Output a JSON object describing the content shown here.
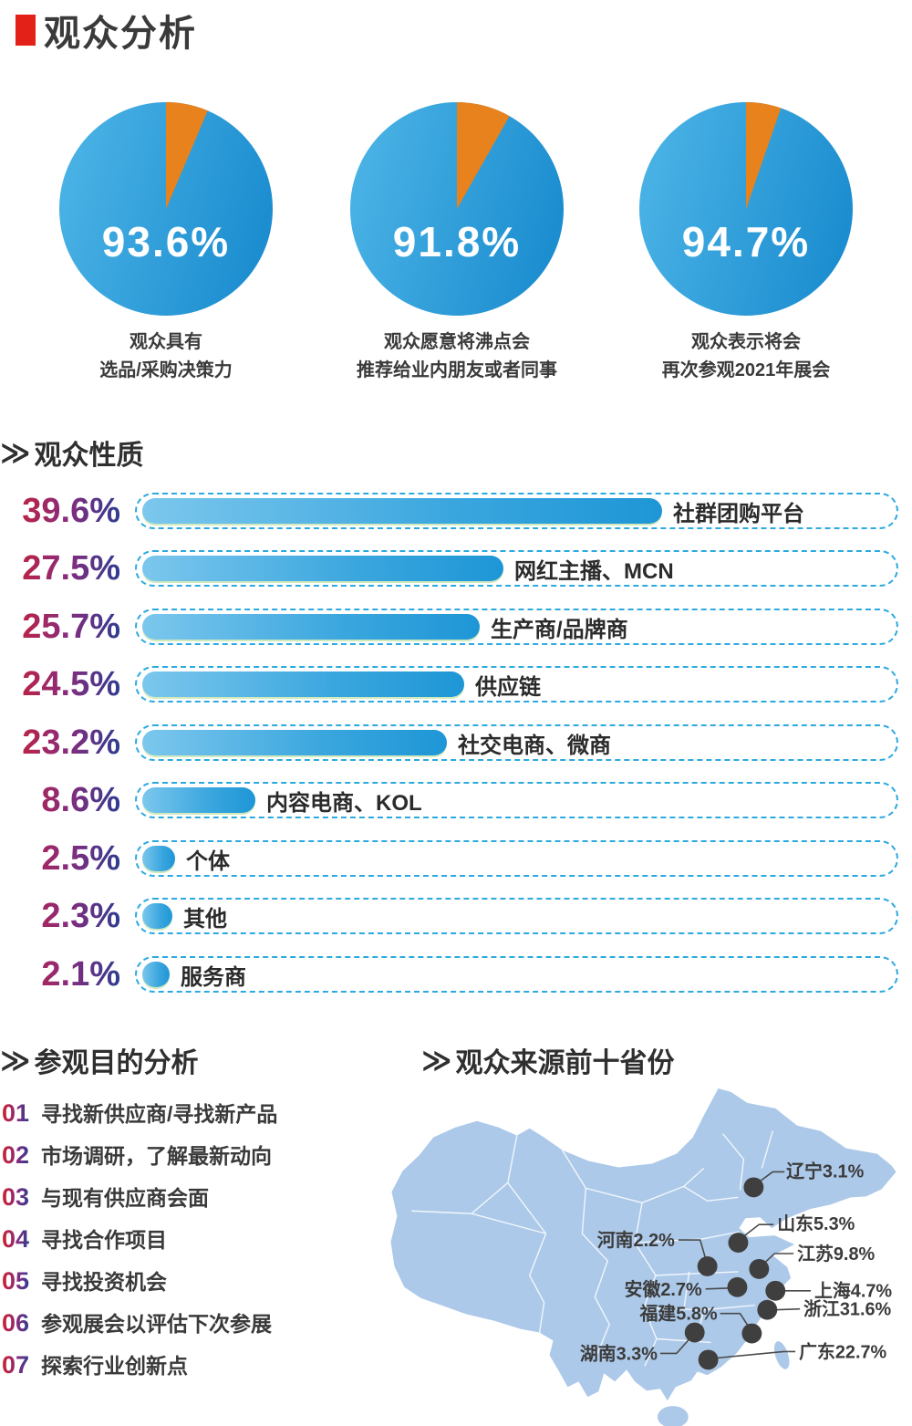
{
  "title": {
    "text": "观众分析"
  },
  "colors": {
    "accent_red": "#e32119",
    "pie_blue": "#2b9fdc",
    "pie_orange": "#e8821c",
    "bar_dashed_border": "#2ba9e0",
    "map_fill": "#acc9e9",
    "dot": "#3f3f3f"
  },
  "pies": [
    {
      "value": 93.6,
      "value_text": "93.6%",
      "caption_line1": "观众具有",
      "caption_line2": "选品/采购决策力"
    },
    {
      "value": 91.8,
      "value_text": "91.8%",
      "caption_line1": "观众愿意将沸点会",
      "caption_line2": "推荐给业内朋友或者同事"
    },
    {
      "value": 94.7,
      "value_text": "94.7%",
      "caption_line1": "观众表示将会",
      "caption_line2": "再次参观2021年展会"
    }
  ],
  "nature": {
    "heading": "观众性质",
    "chevron": "≫",
    "items": [
      {
        "value": 39.6,
        "value_text": "39.6%",
        "label": "社群团购平台"
      },
      {
        "value": 27.5,
        "value_text": "27.5%",
        "label": "网红主播、MCN"
      },
      {
        "value": 25.7,
        "value_text": "25.7%",
        "label": "生产商/品牌商"
      },
      {
        "value": 24.5,
        "value_text": "24.5%",
        "label": "供应链"
      },
      {
        "value": 23.2,
        "value_text": "23.2%",
        "label": "社交电商、微商"
      },
      {
        "value": 8.6,
        "value_text": "8.6%",
        "label": "内容电商、KOL"
      },
      {
        "value": 2.5,
        "value_text": "2.5%",
        "label": "个体"
      },
      {
        "value": 2.3,
        "value_text": "2.3%",
        "label": "其他"
      },
      {
        "value": 2.1,
        "value_text": "2.1%",
        "label": "服务商"
      }
    ]
  },
  "purpose": {
    "heading": "参观目的分析",
    "chevron": "≫",
    "items": [
      {
        "num": "01",
        "text": "寻找新供应商/寻找新产品"
      },
      {
        "num": "02",
        "text": "市场调研，了解最新动向"
      },
      {
        "num": "03",
        "text": "与现有供应商会面"
      },
      {
        "num": "04",
        "text": "寻找合作项目"
      },
      {
        "num": "05",
        "text": "寻找投资机会"
      },
      {
        "num": "06",
        "text": "参观展会以评估下次参展"
      },
      {
        "num": "07",
        "text": "探索行业创新点"
      }
    ]
  },
  "map": {
    "heading": "观众来源前十省份",
    "chevron": "≫",
    "labels": [
      {
        "province": "辽宁",
        "value": "3.1%"
      },
      {
        "province": "山东",
        "value": "5.3%"
      },
      {
        "province": "河南",
        "value": "2.2%"
      },
      {
        "province": "江苏",
        "value": "9.8%"
      },
      {
        "province": "安徽",
        "value": "2.7%"
      },
      {
        "province": "上海",
        "value": "4.7%"
      },
      {
        "province": "浙江",
        "value": "31.6%"
      },
      {
        "province": "福建",
        "value": "5.8%"
      },
      {
        "province": "湖南",
        "value": "3.3%"
      },
      {
        "province": "广东",
        "value": "22.7%"
      }
    ]
  },
  "chart_data": [
    {
      "type": "pie",
      "center_label": "93.6%",
      "caption": "观众具有选品/采购决策力",
      "segments": [
        {
          "value": 93.6,
          "color": "#2b9fdc"
        },
        {
          "value": 6.4,
          "color": "#e8821c"
        }
      ]
    },
    {
      "type": "pie",
      "center_label": "91.8%",
      "caption": "观众愿意将沸点会推荐给业内朋友或者同事",
      "segments": [
        {
          "value": 91.8,
          "color": "#2b9fdc"
        },
        {
          "value": 8.2,
          "color": "#e8821c"
        }
      ]
    },
    {
      "type": "pie",
      "center_label": "94.7%",
      "caption": "观众表示将会再次参观2021年展会",
      "segments": [
        {
          "value": 94.7,
          "color": "#2b9fdc"
        },
        {
          "value": 5.3,
          "color": "#e8821c"
        }
      ]
    },
    {
      "type": "bar",
      "orientation": "horizontal",
      "title": "观众性质",
      "categories": [
        "社群团购平台",
        "网红主播、MCN",
        "生产商/品牌商",
        "供应链",
        "社交电商、微商",
        "内容电商、KOL",
        "个体",
        "其他",
        "服务商"
      ],
      "values": [
        39.6,
        27.5,
        25.7,
        24.5,
        23.2,
        8.6,
        2.5,
        2.3,
        2.1
      ]
    },
    {
      "type": "map",
      "title": "观众来源前十省份",
      "points": [
        {
          "name": "辽宁",
          "value": 3.1
        },
        {
          "name": "山东",
          "value": 5.3
        },
        {
          "name": "河南",
          "value": 2.2
        },
        {
          "name": "江苏",
          "value": 9.8
        },
        {
          "name": "安徽",
          "value": 2.7
        },
        {
          "name": "上海",
          "value": 4.7
        },
        {
          "name": "浙江",
          "value": 31.6
        },
        {
          "name": "福建",
          "value": 5.8
        },
        {
          "name": "湖南",
          "value": 3.3
        },
        {
          "name": "广东",
          "value": 22.7
        }
      ]
    }
  ]
}
